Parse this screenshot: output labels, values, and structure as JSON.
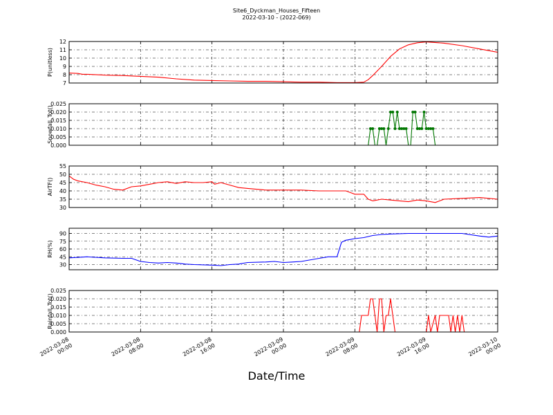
{
  "figure": {
    "title_line1": "Site6_Dyckman_Houses_Fifteen",
    "title_line2": "2022-03-10 - (2022-069)",
    "xlabel": "Date/Time"
  },
  "x_ticks": [
    {
      "line1": "2022-03-08",
      "line2": "00:00",
      "t": 0
    },
    {
      "line1": "2022-03-08",
      "line2": "08:00",
      "t": 8
    },
    {
      "line1": "2022-03-08",
      "line2": "16:00",
      "t": 16
    },
    {
      "line1": "2022-03-09",
      "line2": "00:00",
      "t": 24
    },
    {
      "line1": "2022-03-09",
      "line2": "08:00",
      "t": 32
    },
    {
      "line1": "2022-03-09",
      "line2": "16:00",
      "t": 40
    },
    {
      "line1": "2022-03-10",
      "line2": "00:00",
      "t": 48
    }
  ],
  "chart_data": [
    {
      "type": "line",
      "ylabel": "P(unitless)",
      "ylim": [
        7,
        12
      ],
      "yticks": [
        7,
        8,
        9,
        10,
        11,
        12
      ],
      "ytick_labels": [
        "7",
        "8",
        "9",
        "10",
        "11",
        "12"
      ],
      "grid": true,
      "color": "#ff0000",
      "markers": false,
      "x_unit": "hours since 2022-03-08 00:00",
      "x": [
        0,
        1,
        1.5,
        2,
        4,
        6,
        8,
        10,
        12,
        14,
        16,
        18,
        20,
        22,
        24,
        26,
        28,
        30,
        32,
        33,
        33.5,
        34,
        35,
        36,
        37,
        38,
        39,
        40,
        42,
        44,
        46,
        48
      ],
      "y": [
        8.2,
        8.15,
        8.05,
        8.05,
        7.95,
        7.9,
        7.8,
        7.7,
        7.5,
        7.35,
        7.3,
        7.25,
        7.2,
        7.2,
        7.15,
        7.1,
        7.1,
        7.05,
        7.05,
        7.1,
        7.4,
        7.9,
        9.0,
        10.2,
        11.1,
        11.6,
        11.85,
        11.95,
        11.8,
        11.5,
        11.1,
        10.7
      ]
    },
    {
      "type": "line",
      "ylabel": "Snowfall_Tot()",
      "ylim": [
        0,
        0.025
      ],
      "yticks": [
        0,
        0.005,
        0.01,
        0.015,
        0.02,
        0.025
      ],
      "ytick_labels": [
        "0.000",
        "0.005",
        "0.010",
        "0.015",
        "0.020",
        "0.025"
      ],
      "grid": true,
      "color": "#007700",
      "markers": true,
      "x_unit": "hours since 2022-03-08 00:00",
      "x": [
        0,
        33.5,
        33.75,
        34.0,
        34.25,
        34.5,
        34.75,
        35.0,
        35.25,
        35.5,
        35.75,
        36.0,
        36.25,
        36.5,
        36.75,
        37.0,
        37.25,
        37.5,
        37.75,
        38.0,
        38.25,
        38.5,
        38.75,
        39.0,
        39.25,
        39.5,
        39.75,
        40.0,
        40.25,
        40.5,
        40.75,
        41.0,
        41.25,
        41.5,
        41.75,
        42.0,
        48
      ],
      "y": [
        0,
        0,
        0.01,
        0.01,
        0,
        0,
        0.01,
        0.01,
        0.01,
        0,
        0.01,
        0.02,
        0.02,
        0.01,
        0.02,
        0.01,
        0.01,
        0.01,
        0.01,
        0,
        0,
        0.02,
        0.02,
        0.01,
        0.01,
        0.01,
        0.02,
        0.01,
        0.01,
        0.01,
        0.01,
        0,
        0,
        0,
        0,
        0,
        0
      ]
    },
    {
      "type": "line",
      "ylabel": "AirTF()",
      "ylim": [
        30,
        55
      ],
      "yticks": [
        30,
        35,
        40,
        45,
        50,
        55
      ],
      "ytick_labels": [
        "30",
        "35",
        "40",
        "45",
        "50",
        "55"
      ],
      "grid": true,
      "color": "#ff0000",
      "markers": false,
      "x_unit": "hours since 2022-03-08 00:00",
      "x": [
        0,
        0.5,
        1,
        2,
        3,
        4,
        5,
        6,
        7,
        8,
        9,
        10,
        11,
        12,
        13,
        14,
        15,
        16,
        16.3,
        17,
        18,
        19,
        20,
        22,
        24,
        26,
        28,
        30,
        31,
        32,
        33,
        33.5,
        34,
        35,
        36,
        37,
        38,
        39,
        40,
        41,
        42,
        44,
        46,
        48
      ],
      "y": [
        49,
        47,
        46,
        45,
        43.5,
        42.5,
        41,
        40.5,
        42.5,
        43,
        44,
        45,
        45.5,
        44.5,
        45.5,
        45,
        45,
        45.5,
        44,
        45,
        43.5,
        42,
        41.5,
        40.5,
        40.5,
        40.5,
        40,
        40,
        40,
        38,
        38,
        35,
        34,
        35,
        34.5,
        34,
        33.5,
        34.5,
        34,
        33,
        35,
        35.5,
        36,
        35
      ]
    },
    {
      "type": "line",
      "ylabel": "RH(%)",
      "ylim": [
        20,
        100
      ],
      "yticks": [
        30,
        45,
        60,
        75,
        90
      ],
      "ytick_labels": [
        "30",
        "45",
        "60",
        "75",
        "90"
      ],
      "grid": true,
      "color": "#0000ff",
      "markers": false,
      "x_unit": "hours since 2022-03-08 00:00",
      "x": [
        0,
        2,
        4,
        6,
        7,
        8,
        9,
        10,
        11,
        12,
        13,
        14,
        16,
        17,
        18,
        19,
        20,
        22,
        23,
        24,
        25,
        26,
        28,
        29,
        30,
        30.5,
        31,
        32,
        33,
        34,
        35,
        36,
        38,
        40,
        42,
        44,
        46,
        47,
        48
      ],
      "y": [
        43,
        45,
        43,
        42,
        42,
        36,
        34,
        33,
        34,
        33,
        31,
        30,
        29,
        28,
        30,
        31,
        34,
        35,
        36,
        34,
        35,
        36,
        42,
        45,
        45,
        73,
        77,
        80,
        82,
        86,
        88,
        89,
        90,
        90,
        90,
        90,
        85,
        83,
        85
      ]
    },
    {
      "type": "line",
      "ylabel": "Rainfall_Tot()",
      "ylim": [
        0,
        0.025
      ],
      "yticks": [
        0,
        0.005,
        0.01,
        0.015,
        0.02,
        0.025
      ],
      "ytick_labels": [
        "0.000",
        "0.005",
        "0.010",
        "0.015",
        "0.020",
        "0.025"
      ],
      "grid": true,
      "color": "#ff0000",
      "markers": false,
      "x_unit": "hours since 2022-03-08 00:00",
      "x": [
        0,
        32.5,
        32.75,
        33.5,
        33.75,
        34.0,
        34.25,
        34.5,
        34.75,
        35.0,
        35.25,
        35.5,
        35.75,
        36.0,
        36.25,
        36.5,
        37.0,
        37.25,
        37.5,
        38.0,
        39.0,
        39.25,
        39.5,
        39.75,
        40.0,
        40.25,
        40.5,
        41.0,
        41.25,
        41.5,
        42.0,
        42.25,
        42.5,
        42.75,
        43.0,
        43.25,
        43.5,
        43.75,
        44.0,
        44.25,
        45.0,
        48
      ],
      "y": [
        0,
        0,
        0.01,
        0.01,
        0.02,
        0.02,
        0.01,
        0,
        0.02,
        0.02,
        0,
        0.01,
        0.01,
        0.02,
        0.01,
        0,
        0,
        0,
        0,
        0,
        0,
        0,
        0,
        0,
        0,
        0.01,
        0,
        0.01,
        0,
        0.01,
        0.01,
        0.01,
        0.01,
        0,
        0.01,
        0,
        0.01,
        0,
        0.01,
        0,
        0,
        0
      ]
    }
  ]
}
